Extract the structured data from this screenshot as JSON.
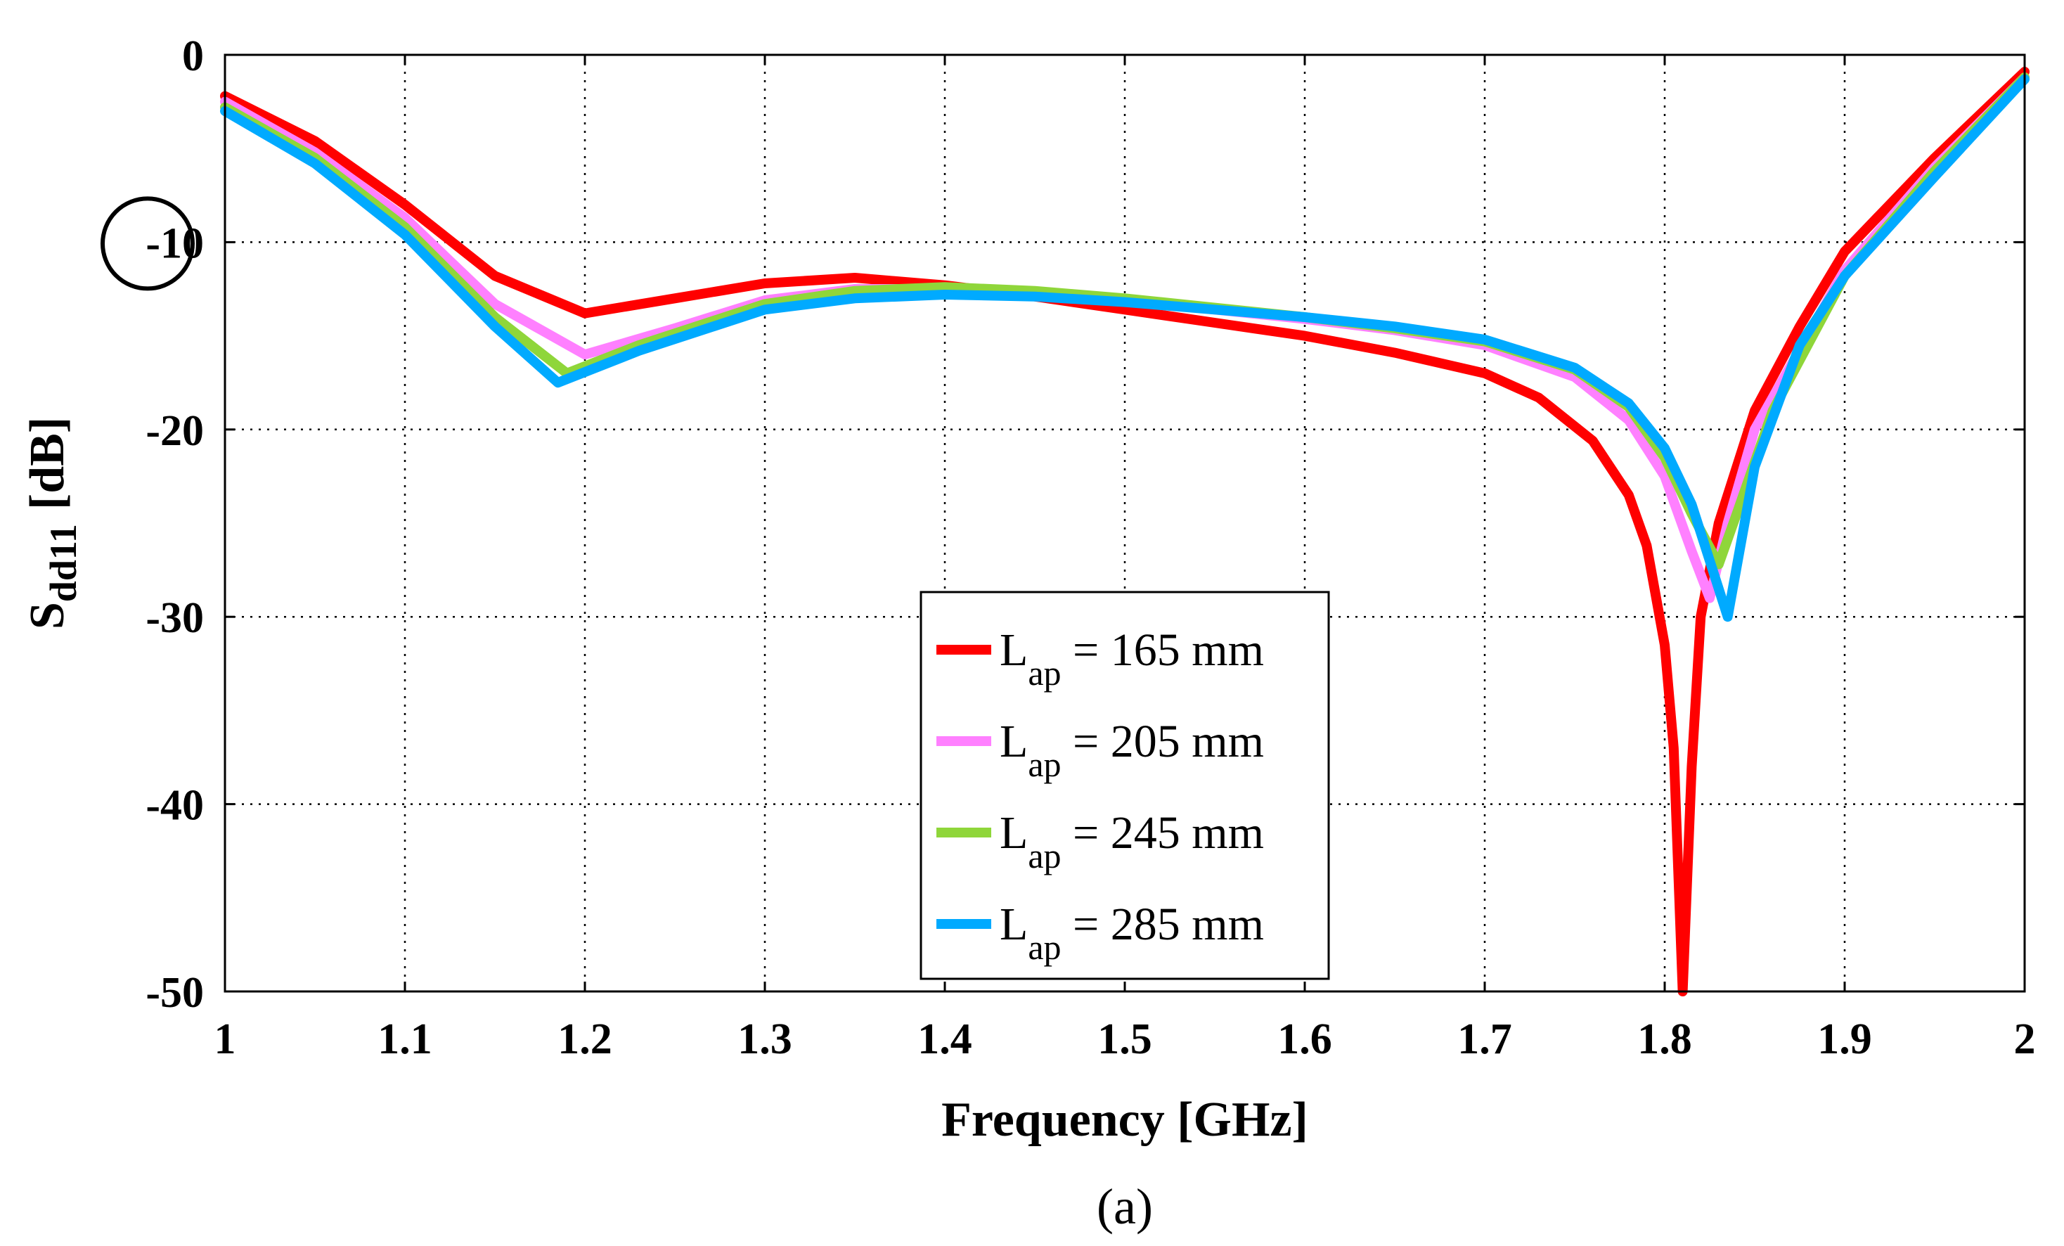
{
  "chart_data": {
    "type": "line",
    "title": "",
    "xlabel": "Frequency [GHz]",
    "ylabel_main": "S",
    "ylabel_sub": "dd11",
    "ylabel_unit": "[dB]",
    "panel_label": "(a)",
    "xlim": [
      1,
      2
    ],
    "ylim": [
      -50,
      0
    ],
    "grid": true,
    "x_ticks": [
      1,
      1.1,
      1.2,
      1.3,
      1.4,
      1.5,
      1.6,
      1.7,
      1.8,
      1.9,
      2
    ],
    "x_tick_labels": [
      "1",
      "1.1",
      "1.2",
      "1.3",
      "1.4",
      "1.5",
      "1.6",
      "1.7",
      "1.8",
      "1.9",
      "2"
    ],
    "y_ticks": [
      0,
      -10,
      -20,
      -30,
      -40,
      -50
    ],
    "y_tick_labels": [
      "0",
      "-10",
      "-20",
      "-30",
      "-40",
      "-50"
    ],
    "highlighted_tick": "-10",
    "legend_position": "center-right",
    "series": [
      {
        "name_main": "L",
        "name_sub": "ap",
        "name_rest": " = 165 mm",
        "color": "#ff0000",
        "points": [
          [
            1.0,
            -2.2
          ],
          [
            1.05,
            -4.6
          ],
          [
            1.1,
            -8.0
          ],
          [
            1.15,
            -11.8
          ],
          [
            1.2,
            -13.8
          ],
          [
            1.25,
            -13.0
          ],
          [
            1.3,
            -12.2
          ],
          [
            1.35,
            -11.9
          ],
          [
            1.4,
            -12.3
          ],
          [
            1.45,
            -12.9
          ],
          [
            1.5,
            -13.6
          ],
          [
            1.55,
            -14.3
          ],
          [
            1.6,
            -15.0
          ],
          [
            1.65,
            -15.9
          ],
          [
            1.7,
            -17.0
          ],
          [
            1.73,
            -18.3
          ],
          [
            1.76,
            -20.6
          ],
          [
            1.78,
            -23.5
          ],
          [
            1.79,
            -26.2
          ],
          [
            1.8,
            -31.5
          ],
          [
            1.805,
            -37.0
          ],
          [
            1.81,
            -50.0
          ],
          [
            1.815,
            -38.0
          ],
          [
            1.82,
            -30.0
          ],
          [
            1.83,
            -25.0
          ],
          [
            1.85,
            -19.0
          ],
          [
            1.875,
            -14.5
          ],
          [
            1.9,
            -10.5
          ],
          [
            1.95,
            -5.5
          ],
          [
            2.0,
            -0.9
          ]
        ]
      },
      {
        "name_main": "L",
        "name_sub": "ap",
        "name_rest": " = 205 mm",
        "color": "#ff80ff",
        "points": [
          [
            1.0,
            -2.5
          ],
          [
            1.05,
            -5.2
          ],
          [
            1.1,
            -8.7
          ],
          [
            1.15,
            -13.3
          ],
          [
            1.2,
            -16.0
          ],
          [
            1.25,
            -14.6
          ],
          [
            1.3,
            -13.1
          ],
          [
            1.35,
            -12.5
          ],
          [
            1.4,
            -12.5
          ],
          [
            1.45,
            -12.7
          ],
          [
            1.5,
            -13.1
          ],
          [
            1.55,
            -13.6
          ],
          [
            1.6,
            -14.1
          ],
          [
            1.65,
            -14.7
          ],
          [
            1.7,
            -15.5
          ],
          [
            1.75,
            -17.2
          ],
          [
            1.78,
            -19.5
          ],
          [
            1.8,
            -22.5
          ],
          [
            1.815,
            -26.5
          ],
          [
            1.825,
            -29.0
          ],
          [
            1.835,
            -25.0
          ],
          [
            1.85,
            -20.0
          ],
          [
            1.9,
            -11.5
          ],
          [
            1.95,
            -6.0
          ],
          [
            2.0,
            -1.2
          ]
        ]
      },
      {
        "name_main": "L",
        "name_sub": "ap",
        "name_rest": " = 245 mm",
        "color": "#8fd63a",
        "points": [
          [
            1.0,
            -2.8
          ],
          [
            1.05,
            -5.5
          ],
          [
            1.1,
            -9.2
          ],
          [
            1.15,
            -14.0
          ],
          [
            1.19,
            -17.0
          ],
          [
            1.23,
            -15.5
          ],
          [
            1.3,
            -13.3
          ],
          [
            1.35,
            -12.6
          ],
          [
            1.4,
            -12.4
          ],
          [
            1.45,
            -12.6
          ],
          [
            1.5,
            -13.0
          ],
          [
            1.55,
            -13.5
          ],
          [
            1.6,
            -14.0
          ],
          [
            1.65,
            -14.6
          ],
          [
            1.7,
            -15.3
          ],
          [
            1.75,
            -16.8
          ],
          [
            1.78,
            -18.8
          ],
          [
            1.8,
            -21.5
          ],
          [
            1.815,
            -24.5
          ],
          [
            1.83,
            -27.2
          ],
          [
            1.84,
            -24.5
          ],
          [
            1.86,
            -19.0
          ],
          [
            1.9,
            -11.8
          ],
          [
            1.95,
            -6.2
          ],
          [
            2.0,
            -1.2
          ]
        ]
      },
      {
        "name_main": "L",
        "name_sub": "ap",
        "name_rest": " = 285 mm",
        "color": "#00aaff",
        "points": [
          [
            1.0,
            -3.0
          ],
          [
            1.05,
            -5.8
          ],
          [
            1.1,
            -9.6
          ],
          [
            1.15,
            -14.5
          ],
          [
            1.185,
            -17.5
          ],
          [
            1.23,
            -15.8
          ],
          [
            1.3,
            -13.6
          ],
          [
            1.35,
            -13.0
          ],
          [
            1.4,
            -12.8
          ],
          [
            1.45,
            -12.9
          ],
          [
            1.5,
            -13.2
          ],
          [
            1.55,
            -13.6
          ],
          [
            1.6,
            -14.0
          ],
          [
            1.65,
            -14.5
          ],
          [
            1.7,
            -15.2
          ],
          [
            1.75,
            -16.7
          ],
          [
            1.78,
            -18.6
          ],
          [
            1.8,
            -21.0
          ],
          [
            1.815,
            -24.0
          ],
          [
            1.825,
            -27.0
          ],
          [
            1.835,
            -30.0
          ],
          [
            1.85,
            -22.0
          ],
          [
            1.875,
            -15.5
          ],
          [
            1.9,
            -11.8
          ],
          [
            1.95,
            -6.5
          ],
          [
            2.0,
            -1.3
          ]
        ]
      }
    ]
  }
}
